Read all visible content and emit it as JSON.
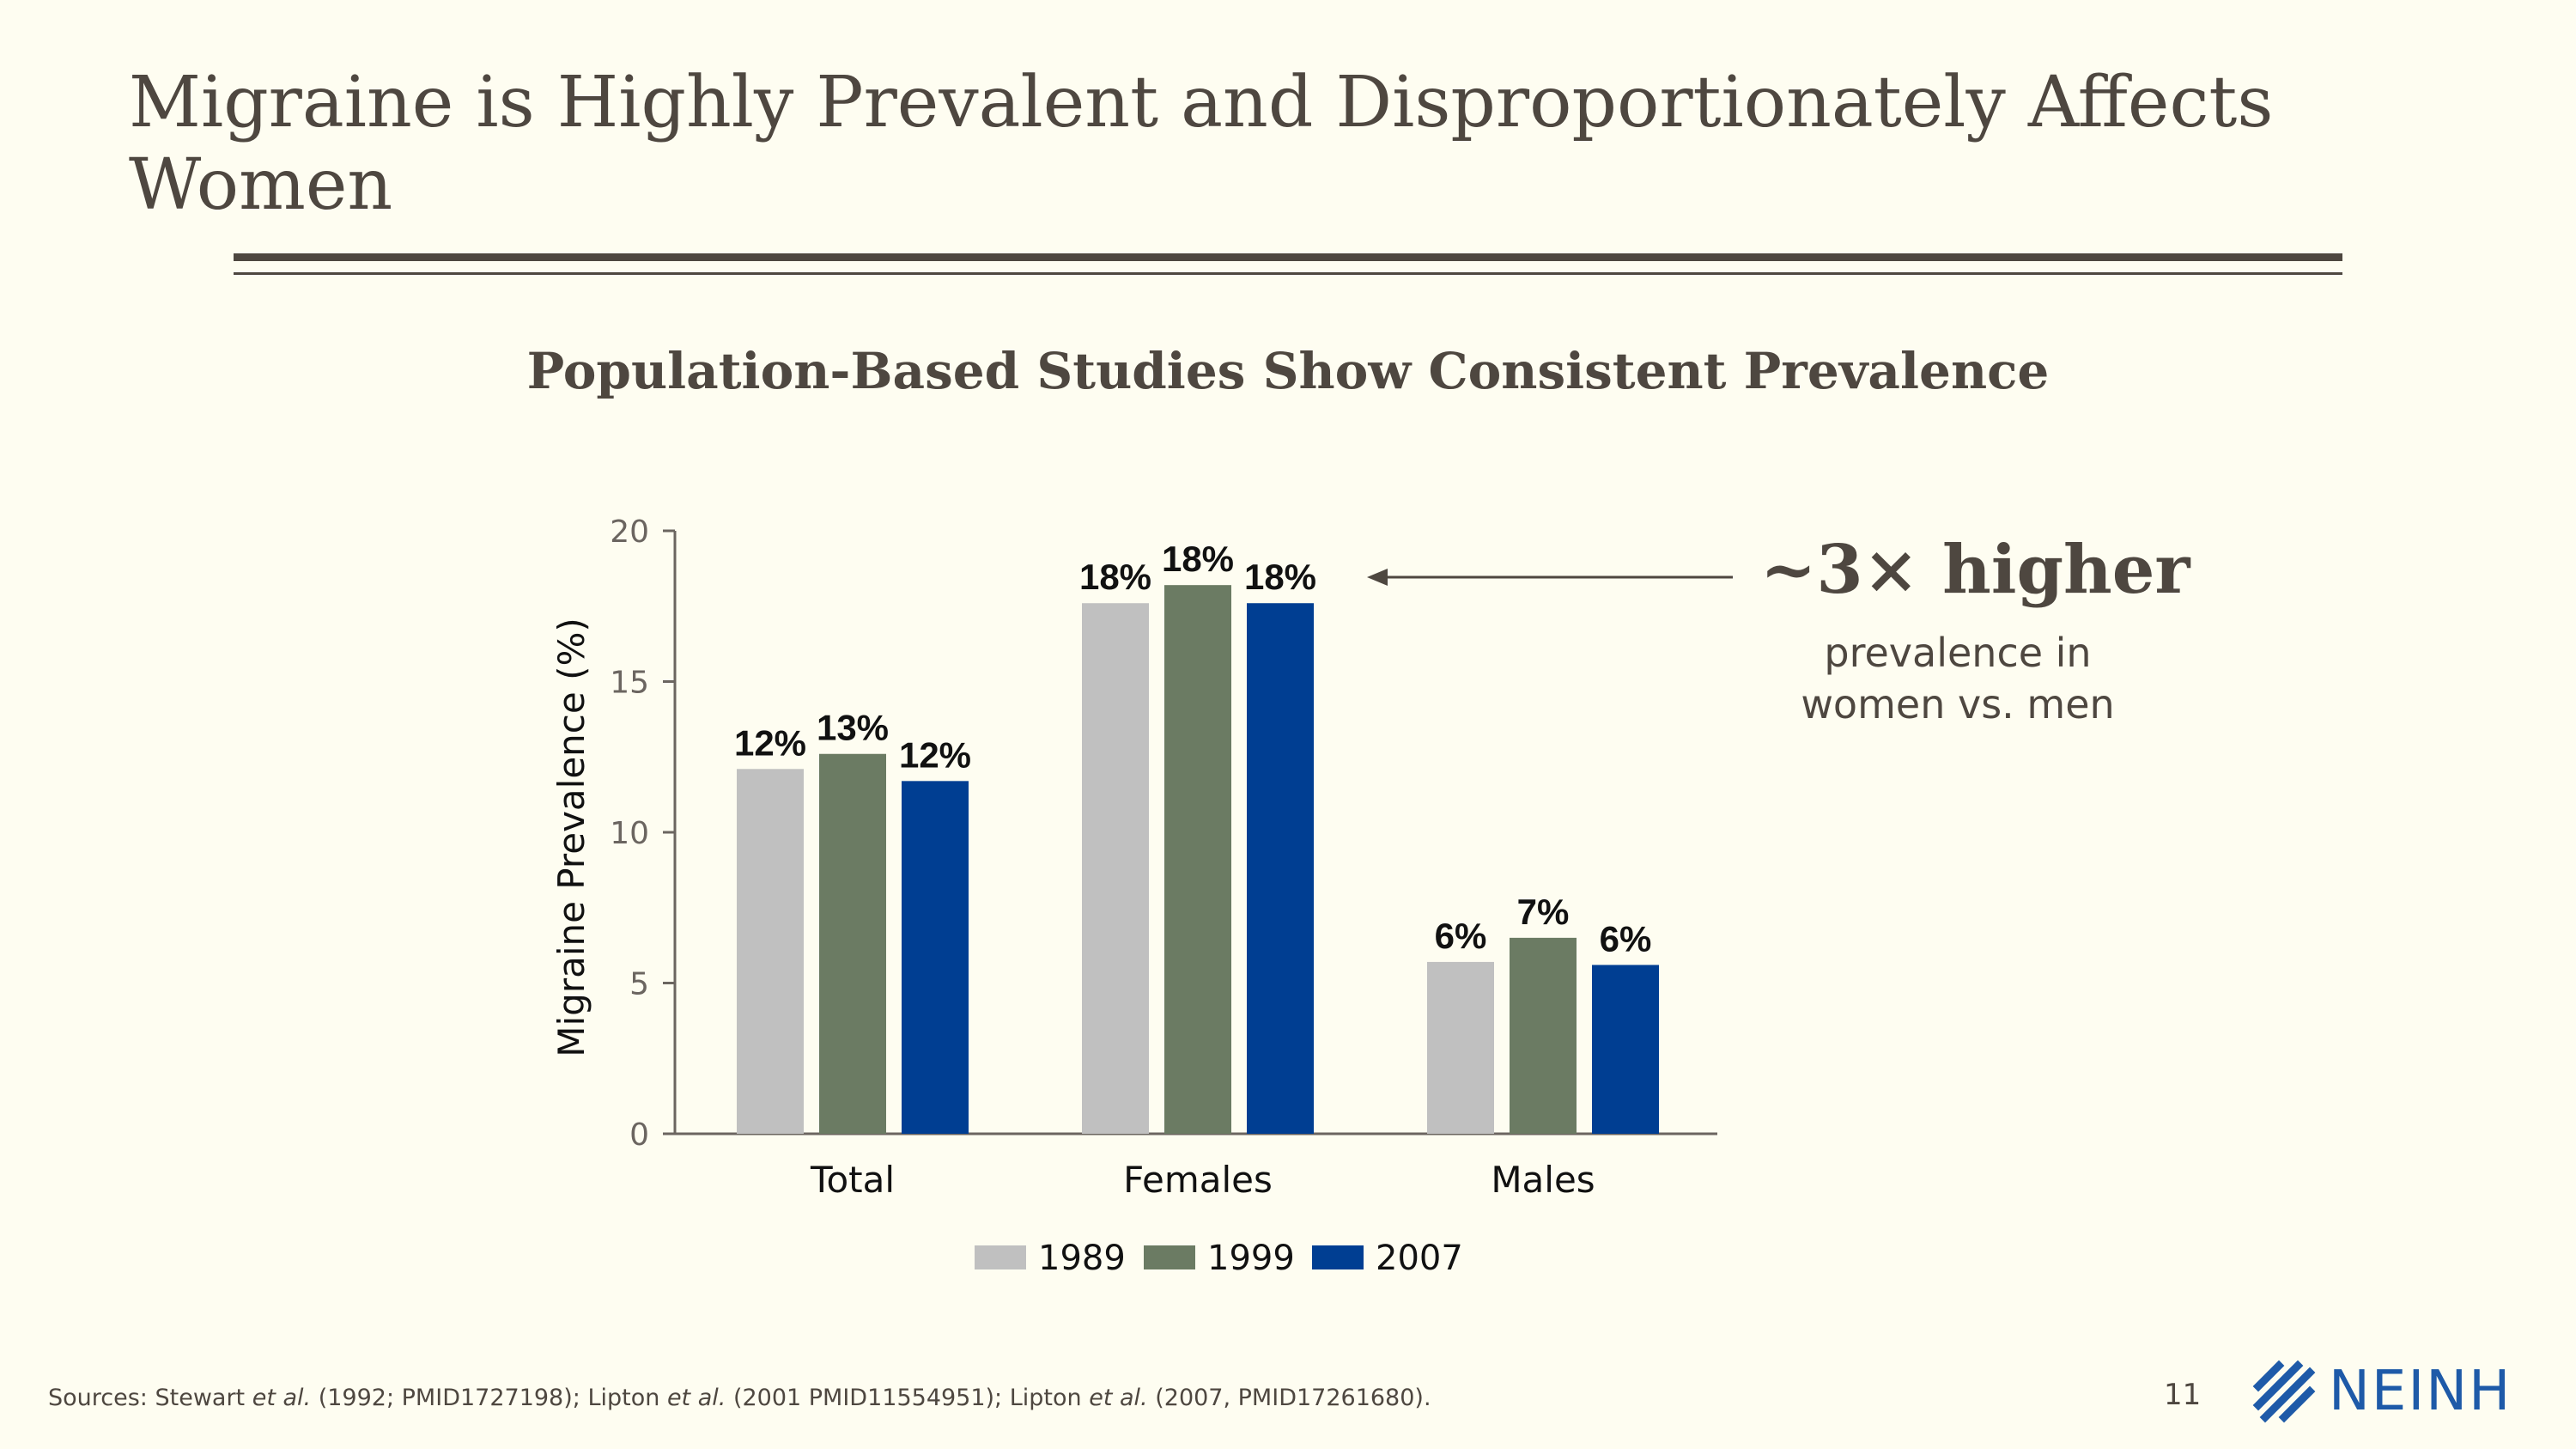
{
  "slide": {
    "title": "Migraine is Highly Prevalent and Disproportionately Affects Women",
    "subtitle": "Population-Based Studies Show Consistent Prevalence",
    "page_number": "11"
  },
  "callout": {
    "headline": "~3× higher",
    "line1": "prevalence in",
    "line2": "women vs. men"
  },
  "sources": {
    "prefix": "Sources: Stewart ",
    "etal1": "et al.",
    "mid1": " (1992; PMID1727198); Lipton ",
    "etal2": "et al.",
    "mid2": " (2001 PMID11554951); Lipton ",
    "etal3": "et al.",
    "suffix": " (2007, PMID17261680)."
  },
  "logo": {
    "text": "NEINH",
    "icon": "neinh-logo-icon"
  },
  "chart_data": {
    "type": "bar",
    "title": "Population-Based Studies Show Consistent Prevalence",
    "xlabel": "",
    "ylabel": "Migraine Prevalence (%)",
    "ylim": [
      0,
      20
    ],
    "yticks": [
      0,
      5,
      10,
      15,
      20
    ],
    "categories": [
      "Total",
      "Females",
      "Males"
    ],
    "series": [
      {
        "name": "1989",
        "color": "#c0c0c0",
        "values": [
          12.1,
          17.6,
          5.7
        ],
        "labels": [
          "12%",
          "18%",
          "6%"
        ]
      },
      {
        "name": "1999",
        "color": "#6b7b63",
        "values": [
          12.6,
          18.2,
          6.5
        ],
        "labels": [
          "13%",
          "18%",
          "7%"
        ]
      },
      {
        "name": "2007",
        "color": "#003e92",
        "values": [
          11.7,
          17.6,
          5.6
        ],
        "labels": [
          "12%",
          "18%",
          "6%"
        ]
      }
    ],
    "legend_position": "bottom-center",
    "grid": false
  }
}
